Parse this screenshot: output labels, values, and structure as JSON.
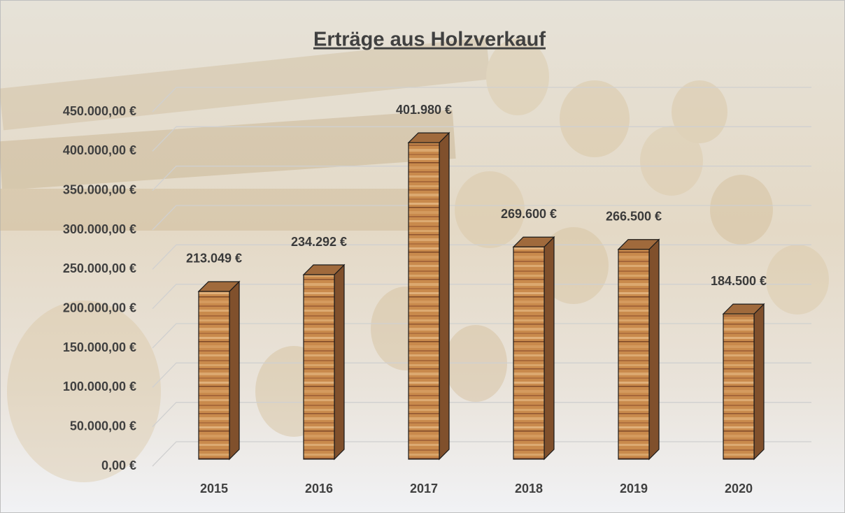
{
  "chart_data": {
    "type": "bar",
    "title": "Erträge aus Holzverkauf",
    "categories": [
      "2015",
      "2016",
      "2017",
      "2018",
      "2019",
      "2020"
    ],
    "values": [
      213049,
      234292,
      401980,
      269600,
      266500,
      184500
    ],
    "value_labels": [
      "213.049 €",
      "234.292 €",
      "401.980 €",
      "269.600 €",
      "266.500 €",
      "184.500 €"
    ],
    "ylim": [
      0,
      450000
    ],
    "yticks": [
      {
        "value": 0,
        "label": "0,00 €"
      },
      {
        "value": 50000,
        "label": "50.000,00 €"
      },
      {
        "value": 100000,
        "label": "100.000,00 €"
      },
      {
        "value": 150000,
        "label": "150.000,00 €"
      },
      {
        "value": 200000,
        "label": "200.000,00 €"
      },
      {
        "value": 250000,
        "label": "250.000,00 €"
      },
      {
        "value": 300000,
        "label": "300.000,00 €"
      },
      {
        "value": 350000,
        "label": "350.000,00 €"
      },
      {
        "value": 400000,
        "label": "400.000,00 €"
      },
      {
        "value": 450000,
        "label": "450.000,00 €"
      }
    ],
    "grid": true,
    "color": "#c8874a"
  }
}
